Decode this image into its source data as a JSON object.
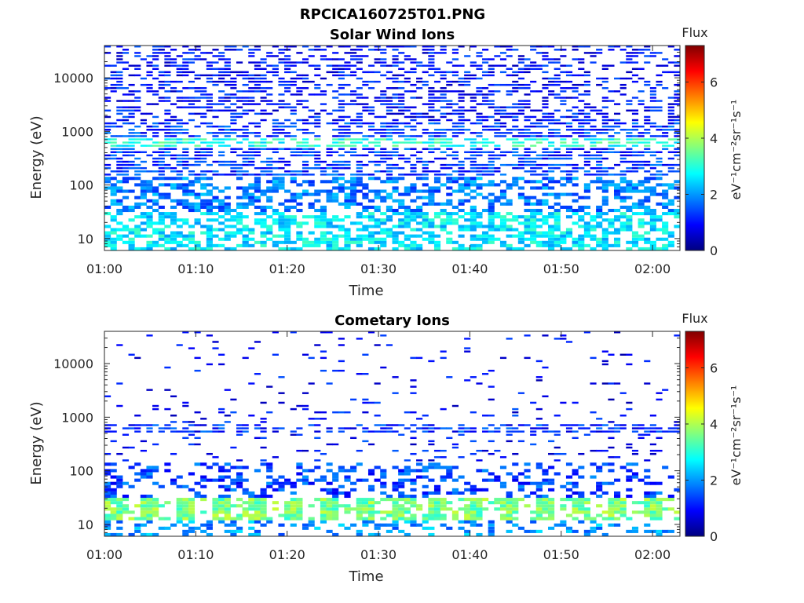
{
  "figure_title": "RPCICA160725T01.PNG",
  "chart_data": [
    {
      "type": "heatmap",
      "title": "Solar Wind Ions",
      "xlabel": "Time",
      "ylabel": "Energy (eV)",
      "x_ticks": [
        "01:00",
        "01:10",
        "01:20",
        "01:30",
        "01:40",
        "01:50",
        "02:00"
      ],
      "x_range_minutes": [
        0,
        63
      ],
      "y_scale": "log",
      "y_ticks": [
        "10",
        "100",
        "1000",
        "10000"
      ],
      "y_range_eV": [
        6,
        40000
      ],
      "colorbar": {
        "label_top": "Flux",
        "label": "eV⁻¹cm⁻²sr⁻¹s⁻¹",
        "ticks": [
          "0",
          "2",
          "4",
          "6"
        ],
        "range": [
          0,
          7.3
        ]
      },
      "bands": [
        {
          "e_min": 1500,
          "e_max": 40000,
          "level": 1.0,
          "fill": 0.45
        },
        {
          "e_min": 150,
          "e_max": 1500,
          "level": 1.3,
          "fill": 0.6
        },
        {
          "e_min": 500,
          "e_max": 750,
          "level": 3.0,
          "fill": 0.55
        },
        {
          "e_min": 30,
          "e_max": 150,
          "level": 1.8,
          "fill": 0.45
        },
        {
          "e_min": 6,
          "e_max": 30,
          "level": 2.6,
          "fill": 0.55
        }
      ]
    },
    {
      "type": "heatmap",
      "title": "Cometary Ions",
      "xlabel": "Time",
      "ylabel": "Energy (eV)",
      "x_ticks": [
        "01:00",
        "01:10",
        "01:20",
        "01:30",
        "01:40",
        "01:50",
        "02:00"
      ],
      "x_range_minutes": [
        0,
        63
      ],
      "y_scale": "log",
      "y_ticks": [
        "10",
        "100",
        "1000",
        "10000"
      ],
      "y_range_eV": [
        6,
        40000
      ],
      "colorbar": {
        "label_top": "Flux",
        "label": "eV⁻¹cm⁻²sr⁻¹s⁻¹",
        "ticks": [
          "0",
          "2",
          "4",
          "6"
        ],
        "range": [
          0,
          7.3
        ]
      },
      "bands": [
        {
          "e_min": 1500,
          "e_max": 40000,
          "level": 0.9,
          "fill": 0.06
        },
        {
          "e_min": 150,
          "e_max": 1500,
          "level": 1.0,
          "fill": 0.12
        },
        {
          "e_min": 500,
          "e_max": 750,
          "level": 1.2,
          "fill": 0.55
        },
        {
          "e_min": 30,
          "e_max": 150,
          "level": 1.4,
          "fill": 0.3
        },
        {
          "e_min": 12,
          "e_max": 30,
          "level": 3.6,
          "fill": 0.8
        },
        {
          "e_min": 6,
          "e_max": 12,
          "level": 2.0,
          "fill": 0.3
        }
      ]
    }
  ]
}
